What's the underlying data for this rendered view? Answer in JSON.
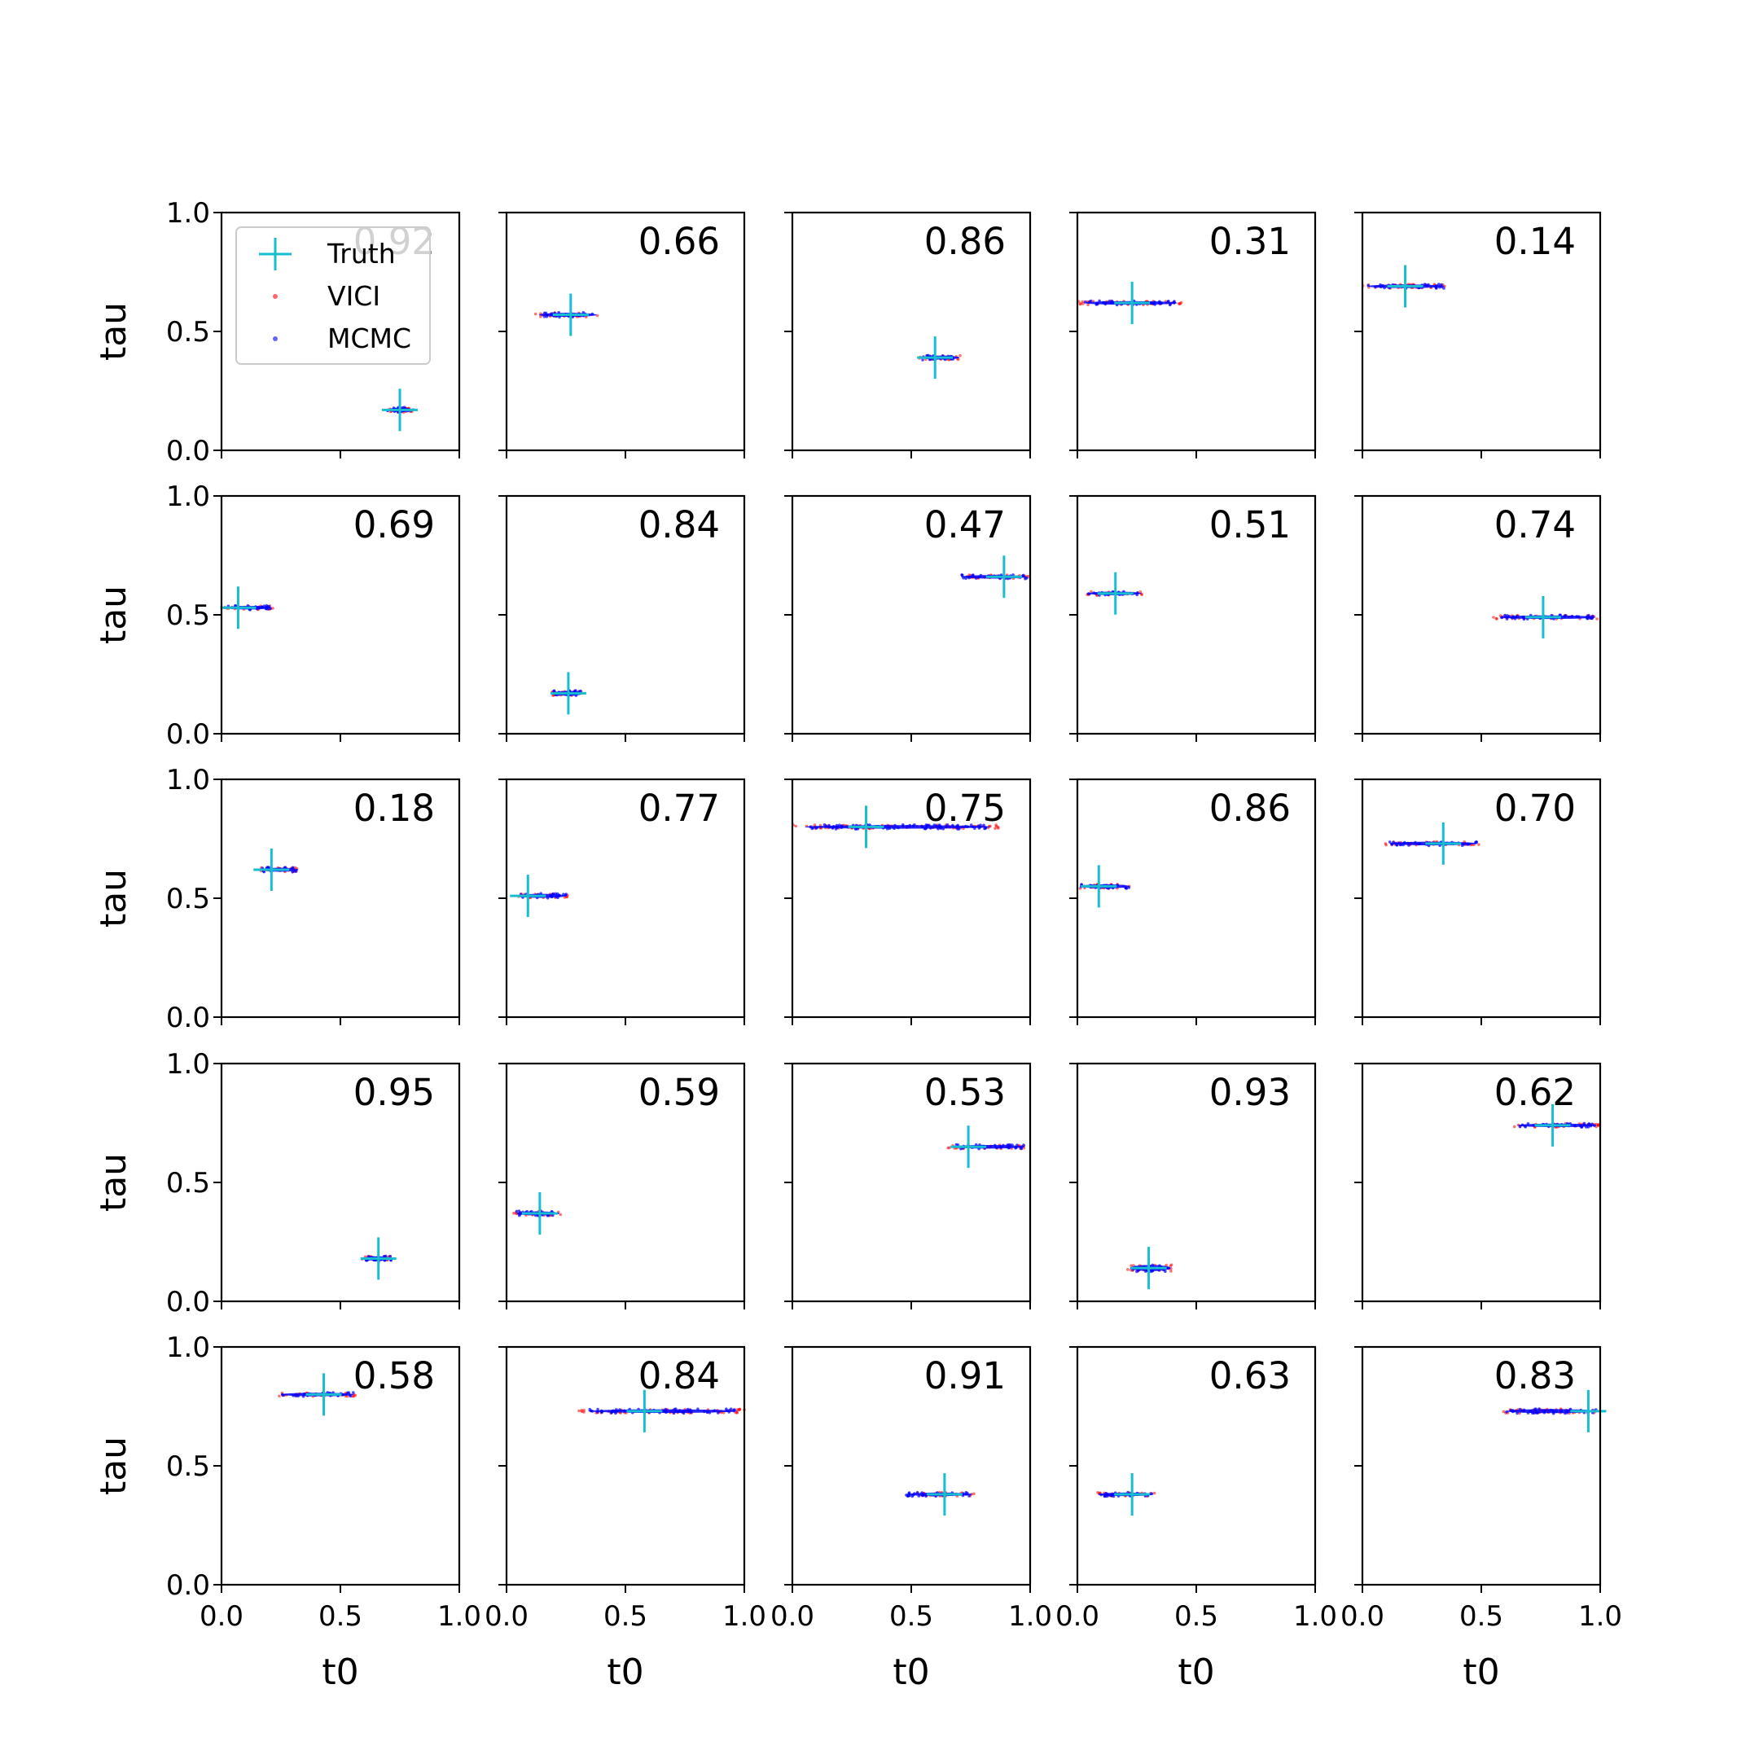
{
  "chart_data": {
    "type": "scatter",
    "layout": "5x5 grid of panels",
    "xlabel": "t0",
    "ylabel": "tau",
    "xlim": [
      0,
      1
    ],
    "ylim": [
      0,
      1
    ],
    "xticks": [
      "0.0",
      "0.5",
      "1.0"
    ],
    "yticks": [
      "0.0",
      "0.5",
      "1.0"
    ],
    "legend": {
      "position": "upper left of first panel",
      "entries": [
        {
          "label": "Truth",
          "marker": "plus",
          "color": "#17becf"
        },
        {
          "label": "VICI",
          "marker": "dot",
          "color": "#ff0000"
        },
        {
          "label": "MCMC",
          "marker": "dot",
          "color": "#0000ff"
        }
      ]
    },
    "colors": {
      "truth": "#17becf",
      "vici": "#ff0000",
      "mcmc": "#0000ff"
    },
    "panels": [
      {
        "value": "0.92",
        "truth": [
          0.75,
          0.17
        ],
        "cloud": {
          "x": [
            0.69,
            0.81
          ],
          "y": 0.17,
          "h": 0.022
        }
      },
      {
        "value": "0.66",
        "truth": [
          0.27,
          0.57
        ],
        "cloud": {
          "x": [
            0.12,
            0.39
          ],
          "y": 0.57,
          "h": 0.02
        }
      },
      {
        "value": "0.86",
        "truth": [
          0.6,
          0.39
        ],
        "cloud": {
          "x": [
            0.53,
            0.71
          ],
          "y": 0.39,
          "h": 0.02
        }
      },
      {
        "value": "0.31",
        "truth": [
          0.23,
          0.62
        ],
        "cloud": {
          "x": [
            0.0,
            0.44
          ],
          "y": 0.62,
          "h": 0.018
        }
      },
      {
        "value": "0.14",
        "truth": [
          0.18,
          0.69
        ],
        "cloud": {
          "x": [
            0.0,
            0.36
          ],
          "y": 0.69,
          "h": 0.018
        }
      },
      {
        "value": "0.69",
        "truth": [
          0.07,
          0.53
        ],
        "cloud": {
          "x": [
            0.0,
            0.22
          ],
          "y": 0.53,
          "h": 0.018
        }
      },
      {
        "value": "0.84",
        "truth": [
          0.26,
          0.17
        ],
        "cloud": {
          "x": [
            0.19,
            0.33
          ],
          "y": 0.17,
          "h": 0.024
        }
      },
      {
        "value": "0.47",
        "truth": [
          0.89,
          0.66
        ],
        "cloud": {
          "x": [
            0.69,
            1.0
          ],
          "y": 0.66,
          "h": 0.018
        }
      },
      {
        "value": "0.51",
        "truth": [
          0.16,
          0.59
        ],
        "cloud": {
          "x": [
            0.03,
            0.28
          ],
          "y": 0.59,
          "h": 0.018
        }
      },
      {
        "value": "0.74",
        "truth": [
          0.76,
          0.49
        ],
        "cloud": {
          "x": [
            0.55,
            1.0
          ],
          "y": 0.49,
          "h": 0.018
        }
      },
      {
        "value": "0.18",
        "truth": [
          0.21,
          0.62
        ],
        "cloud": {
          "x": [
            0.16,
            0.33
          ],
          "y": 0.62,
          "h": 0.02
        }
      },
      {
        "value": "0.77",
        "truth": [
          0.09,
          0.51
        ],
        "cloud": {
          "x": [
            0.03,
            0.26
          ],
          "y": 0.51,
          "h": 0.02
        }
      },
      {
        "value": "0.75",
        "truth": [
          0.31,
          0.8
        ],
        "cloud": {
          "x": [
            0.0,
            0.87
          ],
          "y": 0.8,
          "h": 0.018
        }
      },
      {
        "value": "0.86",
        "truth": [
          0.09,
          0.55
        ],
        "cloud": {
          "x": [
            0.0,
            0.23
          ],
          "y": 0.55,
          "h": 0.02
        }
      },
      {
        "value": "0.70",
        "truth": [
          0.34,
          0.73
        ],
        "cloud": {
          "x": [
            0.09,
            0.5
          ],
          "y": 0.73,
          "h": 0.018
        }
      },
      {
        "value": "0.95",
        "truth": [
          0.66,
          0.18
        ],
        "cloud": {
          "x": [
            0.59,
            0.72
          ],
          "y": 0.18,
          "h": 0.022
        }
      },
      {
        "value": "0.59",
        "truth": [
          0.14,
          0.37
        ],
        "cloud": {
          "x": [
            0.03,
            0.23
          ],
          "y": 0.37,
          "h": 0.02
        }
      },
      {
        "value": "0.53",
        "truth": [
          0.74,
          0.65
        ],
        "cloud": {
          "x": [
            0.65,
            0.99
          ],
          "y": 0.65,
          "h": 0.018
        }
      },
      {
        "value": "0.93",
        "truth": [
          0.3,
          0.14
        ],
        "cloud": {
          "x": [
            0.21,
            0.4
          ],
          "y": 0.14,
          "h": 0.03
        }
      },
      {
        "value": "0.62",
        "truth": [
          0.8,
          0.74
        ],
        "cloud": {
          "x": [
            0.63,
            1.0
          ],
          "y": 0.74,
          "h": 0.018
        }
      },
      {
        "value": "0.58",
        "truth": [
          0.43,
          0.8
        ],
        "cloud": {
          "x": [
            0.23,
            0.57
          ],
          "y": 0.8,
          "h": 0.018
        }
      },
      {
        "value": "0.84",
        "truth": [
          0.58,
          0.73
        ],
        "cloud": {
          "x": [
            0.3,
            1.0
          ],
          "y": 0.73,
          "h": 0.018
        }
      },
      {
        "value": "0.91",
        "truth": [
          0.64,
          0.38
        ],
        "cloud": {
          "x": [
            0.46,
            0.77
          ],
          "y": 0.38,
          "h": 0.018
        }
      },
      {
        "value": "0.63",
        "truth": [
          0.23,
          0.38
        ],
        "cloud": {
          "x": [
            0.07,
            0.33
          ],
          "y": 0.38,
          "h": 0.018
        }
      },
      {
        "value": "0.83",
        "truth": [
          0.95,
          0.73
        ],
        "cloud": {
          "x": [
            0.58,
            1.0
          ],
          "y": 0.73,
          "h": 0.02
        }
      }
    ]
  }
}
